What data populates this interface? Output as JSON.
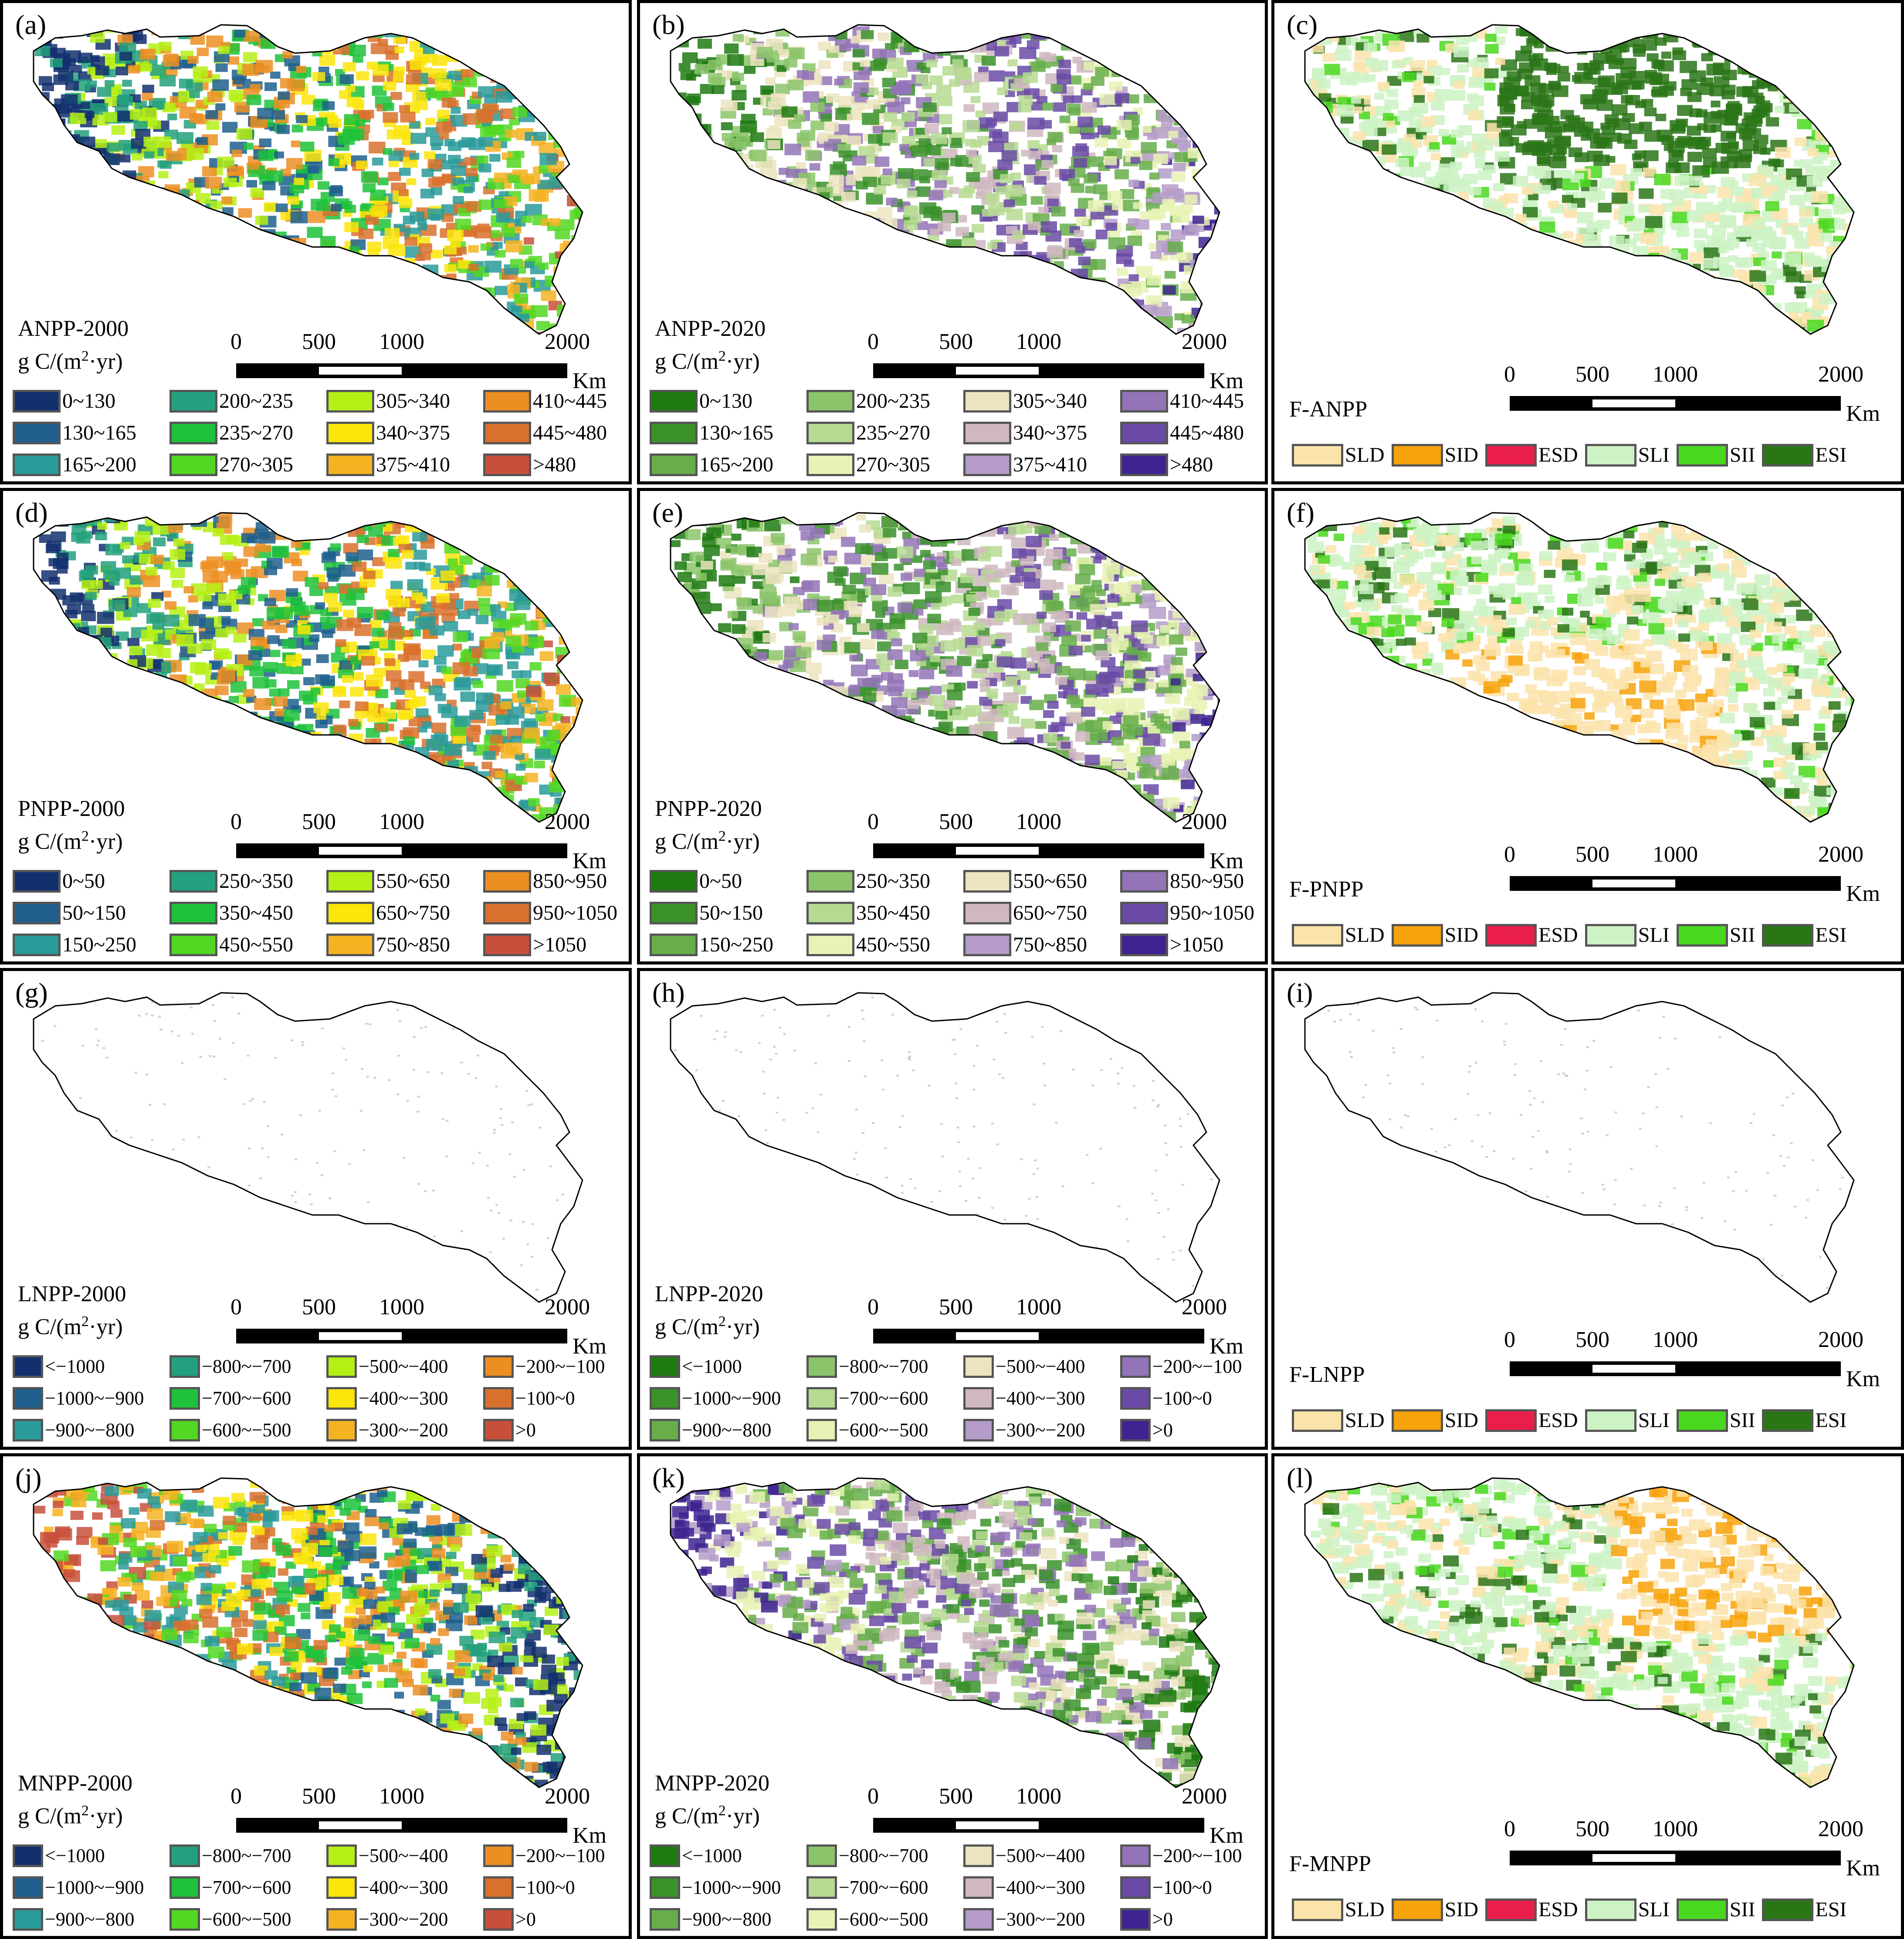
{
  "figure": {
    "panels": [
      {
        "id": "a",
        "label": "(a)",
        "title": "ANPP-2000",
        "unit_prefix": "g C/(m",
        "unit_exp": "2",
        "unit_suffix": "·yr)",
        "legend": [
          {
            "text": "0~130",
            "color": "#13306e"
          },
          {
            "text": "200~235",
            "color": "#23a07d"
          },
          {
            "text": "305~340",
            "color": "#b5f014"
          },
          {
            "text": "410~445",
            "color": "#ec8f23"
          },
          {
            "text": "130~165",
            "color": "#1f5f8d"
          },
          {
            "text": "235~270",
            "color": "#1fc23b"
          },
          {
            "text": "340~375",
            "color": "#fbe50a"
          },
          {
            "text": "445~480",
            "color": "#d9712e"
          },
          {
            "text": "165~200",
            "color": "#2a9a9a"
          },
          {
            "text": "270~305",
            "color": "#52d823"
          },
          {
            "text": "375~410",
            "color": "#f4b321"
          },
          {
            "text": ">480",
            "color": "#c8503b"
          }
        ]
      },
      {
        "id": "b",
        "label": "(b)",
        "title": "ANPP-2020",
        "unit_prefix": "g C/(m",
        "unit_exp": "2",
        "unit_suffix": "·yr)",
        "legend": [
          {
            "text": "0~130",
            "color": "#1f7a12"
          },
          {
            "text": "200~235",
            "color": "#8cc46b"
          },
          {
            "text": "305~340",
            "color": "#ece4c0"
          },
          {
            "text": "410~445",
            "color": "#9374b6"
          },
          {
            "text": "130~165",
            "color": "#3b922b"
          },
          {
            "text": "235~270",
            "color": "#b6da92"
          },
          {
            "text": "340~375",
            "color": "#cfb8bf"
          },
          {
            "text": "445~480",
            "color": "#6a4aa6"
          },
          {
            "text": "165~200",
            "color": "#67ae4b"
          },
          {
            "text": "270~305",
            "color": "#e8f2b4"
          },
          {
            "text": "375~410",
            "color": "#b59cc9"
          },
          {
            "text": ">480",
            "color": "#3e2391"
          }
        ]
      },
      {
        "id": "c",
        "label": "(c)",
        "title": "F-ANPP"
      },
      {
        "id": "d",
        "label": "(d)",
        "title": "PNPP-2000",
        "unit_prefix": "g C/(m",
        "unit_exp": "2",
        "unit_suffix": "·yr)",
        "legend": [
          {
            "text": "0~50",
            "color": "#13306e"
          },
          {
            "text": "250~350",
            "color": "#23a07d"
          },
          {
            "text": "550~650",
            "color": "#b5f014"
          },
          {
            "text": "850~950",
            "color": "#ec8f23"
          },
          {
            "text": "50~150",
            "color": "#1f5f8d"
          },
          {
            "text": "350~450",
            "color": "#1fc23b"
          },
          {
            "text": "650~750",
            "color": "#fbe50a"
          },
          {
            "text": "950~1050",
            "color": "#d9712e"
          },
          {
            "text": "150~250",
            "color": "#2a9a9a"
          },
          {
            "text": "450~550",
            "color": "#52d823"
          },
          {
            "text": "750~850",
            "color": "#f4b321"
          },
          {
            "text": ">1050",
            "color": "#c8503b"
          }
        ]
      },
      {
        "id": "e",
        "label": "(e)",
        "title": "PNPP-2020",
        "unit_prefix": "g C/(m",
        "unit_exp": "2",
        "unit_suffix": "·yr)",
        "legend": [
          {
            "text": "0~50",
            "color": "#1f7a12"
          },
          {
            "text": "250~350",
            "color": "#8cc46b"
          },
          {
            "text": "550~650",
            "color": "#ece4c0"
          },
          {
            "text": "850~950",
            "color": "#9374b6"
          },
          {
            "text": "50~150",
            "color": "#3b922b"
          },
          {
            "text": "350~450",
            "color": "#b6da92"
          },
          {
            "text": "650~750",
            "color": "#cfb8bf"
          },
          {
            "text": "950~1050",
            "color": "#6a4aa6"
          },
          {
            "text": "150~250",
            "color": "#67ae4b"
          },
          {
            "text": "450~550",
            "color": "#e8f2b4"
          },
          {
            "text": "750~850",
            "color": "#b59cc9"
          },
          {
            "text": ">1050",
            "color": "#3e2391"
          }
        ]
      },
      {
        "id": "f",
        "label": "(f)",
        "title": "F-PNPP"
      },
      {
        "id": "g",
        "label": "(g)",
        "title": "LNPP-2000",
        "unit_prefix": "g C/(m",
        "unit_exp": "2",
        "unit_suffix": "·yr)",
        "legend": [
          {
            "text": "<−1000",
            "color": "#13306e"
          },
          {
            "text": "−800~−700",
            "color": "#23a07d"
          },
          {
            "text": "−500~−400",
            "color": "#b5f014"
          },
          {
            "text": "−200~−100",
            "color": "#ec8f23"
          },
          {
            "text": "−1000~−900",
            "color": "#1f5f8d"
          },
          {
            "text": "−700~−600",
            "color": "#1fc23b"
          },
          {
            "text": "−400~−300",
            "color": "#fbe50a"
          },
          {
            "text": "−100~0",
            "color": "#d9712e"
          },
          {
            "text": "−900~−800",
            "color": "#2a9a9a"
          },
          {
            "text": "−600~−500",
            "color": "#52d823"
          },
          {
            "text": "−300~−200",
            "color": "#f4b321"
          },
          {
            "text": ">0",
            "color": "#c8503b"
          }
        ]
      },
      {
        "id": "h",
        "label": "(h)",
        "title": "LNPP-2020",
        "unit_prefix": "g C/(m",
        "unit_exp": "2",
        "unit_suffix": "·yr)",
        "legend": [
          {
            "text": "<−1000",
            "color": "#1f7a12"
          },
          {
            "text": "−800~−700",
            "color": "#8cc46b"
          },
          {
            "text": "−500~−400",
            "color": "#ece4c0"
          },
          {
            "text": "−200~−100",
            "color": "#9374b6"
          },
          {
            "text": "−1000~−900",
            "color": "#3b922b"
          },
          {
            "text": "−700~−600",
            "color": "#b6da92"
          },
          {
            "text": "−400~−300",
            "color": "#cfb8bf"
          },
          {
            "text": "−100~0",
            "color": "#6a4aa6"
          },
          {
            "text": "−900~−800",
            "color": "#67ae4b"
          },
          {
            "text": "−600~−500",
            "color": "#e8f2b4"
          },
          {
            "text": "−300~−200",
            "color": "#b59cc9"
          },
          {
            "text": ">0",
            "color": "#3e2391"
          }
        ]
      },
      {
        "id": "i",
        "label": "(i)",
        "title": "F-LNPP"
      },
      {
        "id": "j",
        "label": "(j)",
        "title": "MNPP-2000",
        "unit_prefix": "g C/(m",
        "unit_exp": "2",
        "unit_suffix": "·yr)",
        "legend": [
          {
            "text": "<−1000",
            "color": "#13306e"
          },
          {
            "text": "−800~−700",
            "color": "#23a07d"
          },
          {
            "text": "−500~−400",
            "color": "#b5f014"
          },
          {
            "text": "−200~−100",
            "color": "#ec8f23"
          },
          {
            "text": "−1000~−900",
            "color": "#1f5f8d"
          },
          {
            "text": "−700~−600",
            "color": "#1fc23b"
          },
          {
            "text": "−400~−300",
            "color": "#fbe50a"
          },
          {
            "text": "−100~0",
            "color": "#d9712e"
          },
          {
            "text": "−900~−800",
            "color": "#2a9a9a"
          },
          {
            "text": "−600~−500",
            "color": "#52d823"
          },
          {
            "text": "−300~−200",
            "color": "#f4b321"
          },
          {
            "text": ">0",
            "color": "#c8503b"
          }
        ]
      },
      {
        "id": "k",
        "label": "(k)",
        "title": "MNPP-2020",
        "unit_prefix": "g C/(m",
        "unit_exp": "2",
        "unit_suffix": "·yr)",
        "legend": [
          {
            "text": "<−1000",
            "color": "#1f7a12"
          },
          {
            "text": "−800~−700",
            "color": "#8cc46b"
          },
          {
            "text": "−500~−400",
            "color": "#ece4c0"
          },
          {
            "text": "−200~−100",
            "color": "#9374b6"
          },
          {
            "text": "−1000~−900",
            "color": "#3b922b"
          },
          {
            "text": "−700~−600",
            "color": "#b6da92"
          },
          {
            "text": "−400~−300",
            "color": "#cfb8bf"
          },
          {
            "text": "−100~0",
            "color": "#6a4aa6"
          },
          {
            "text": "−900~−800",
            "color": "#67ae4b"
          },
          {
            "text": "−600~−500",
            "color": "#e8f2b4"
          },
          {
            "text": "−300~−200",
            "color": "#b59cc9"
          },
          {
            "text": ">0",
            "color": "#3e2391"
          }
        ]
      },
      {
        "id": "l",
        "label": "(l)",
        "title": "F-MNPP"
      }
    ],
    "f_legend": [
      {
        "text": "SLD",
        "color": "#fbe3ab"
      },
      {
        "text": "SID",
        "color": "#f7a30c"
      },
      {
        "text": "ESD",
        "color": "#ea1e4b"
      },
      {
        "text": "SLI",
        "color": "#cdf2c4"
      },
      {
        "text": "SII",
        "color": "#4ad81f"
      },
      {
        "text": "ESI",
        "color": "#2a7617"
      }
    ],
    "scale_bar": {
      "ticks": [
        "0",
        "500",
        "1000",
        "2000"
      ],
      "unit": "Km"
    }
  }
}
